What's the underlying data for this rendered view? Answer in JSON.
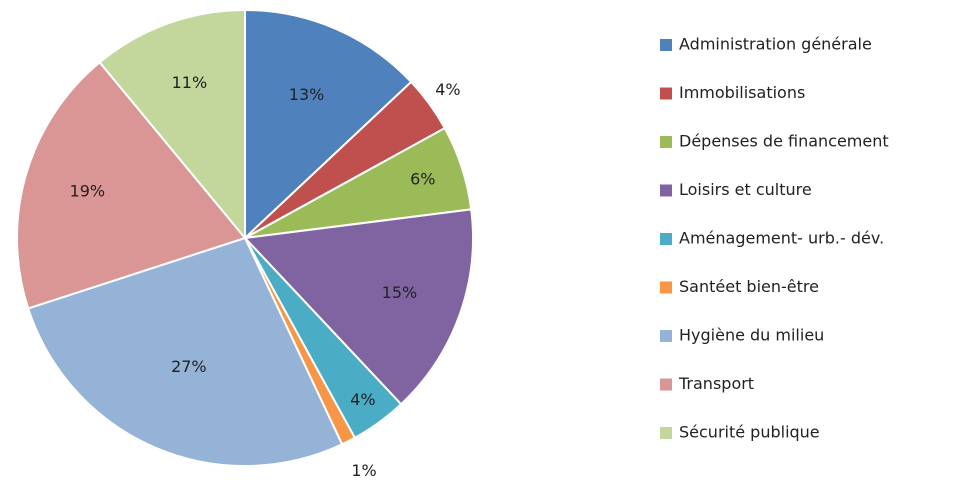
{
  "chart_data": {
    "type": "pie",
    "categories": [
      "Administration générale",
      "Immobilisations",
      "Dépenses de financement",
      "Loisirs et culture",
      "Aménagement- urb.- dév.",
      "Santéet bien-être",
      "Hygiène du milieu",
      "Transport",
      "Sécurité publique"
    ],
    "values": [
      13,
      4,
      6,
      15,
      4,
      1,
      27,
      19,
      11
    ],
    "value_labels": [
      "13%",
      "4%",
      "6%",
      "15%",
      "4%",
      "1%",
      "27%",
      "19%",
      "11%"
    ],
    "colors": [
      "#4f81bd",
      "#c0504d",
      "#9bbb59",
      "#8064a2",
      "#4bacc6",
      "#f79646",
      "#95b3d7",
      "#d99694",
      "#c3d69b"
    ],
    "legend": "right"
  }
}
